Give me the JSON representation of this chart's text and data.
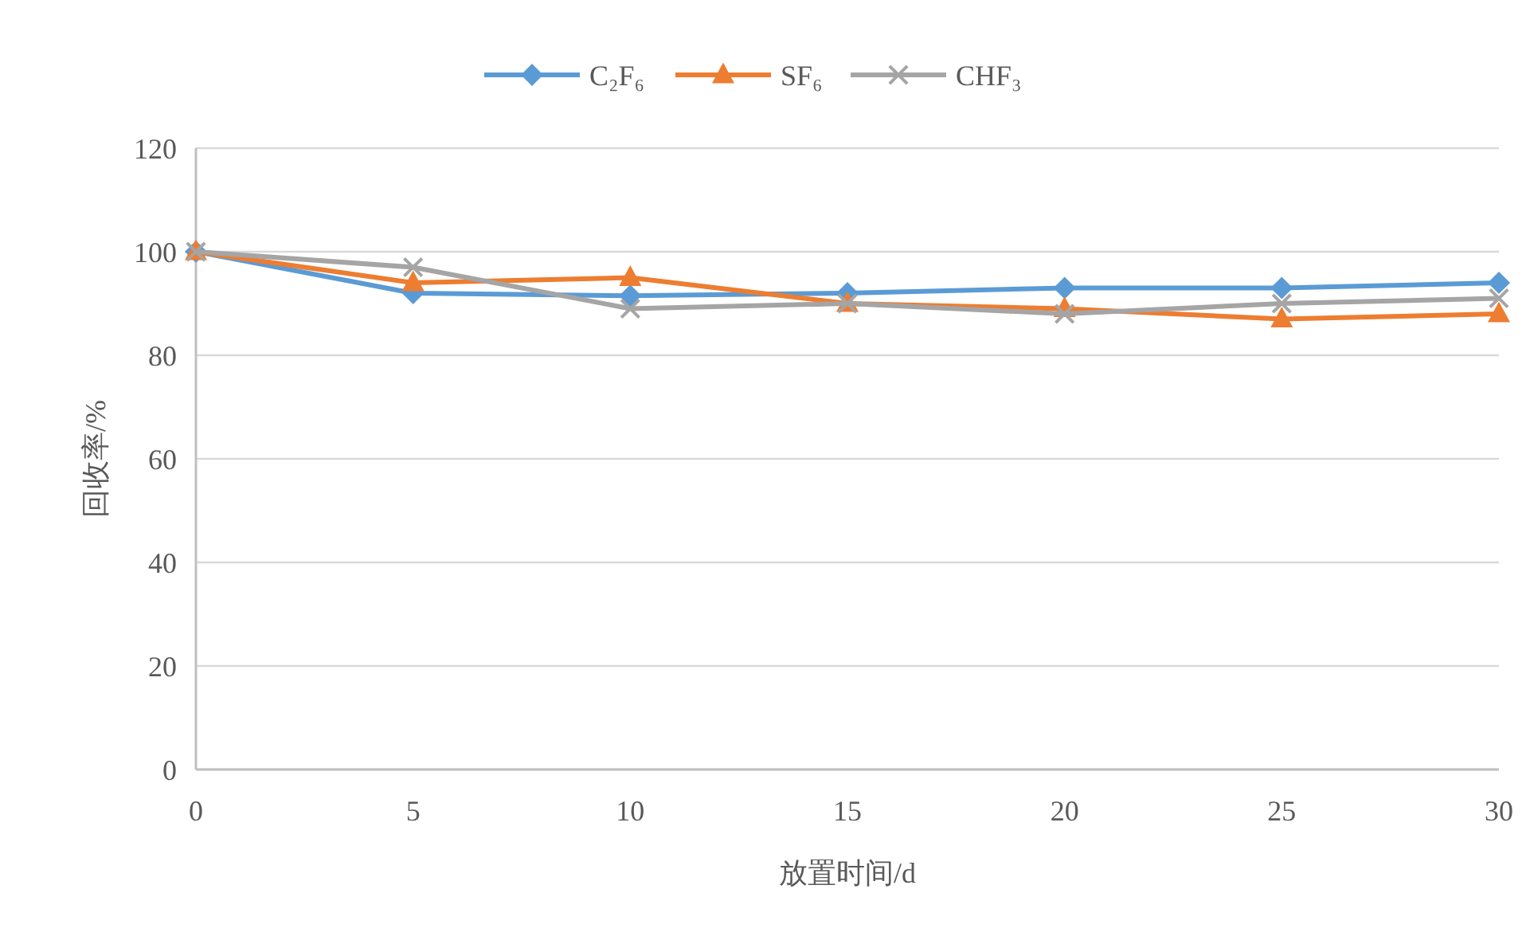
{
  "chart_data": {
    "type": "line",
    "xlabel": "放置时间/d",
    "ylabel": "回收率/%",
    "x": [
      0,
      5,
      10,
      15,
      20,
      25,
      30
    ],
    "series": [
      {
        "name": "C₂F₆",
        "color": "#5b9bd5",
        "marker": "diamond",
        "values": [
          100,
          92,
          91.5,
          92,
          93,
          93,
          94
        ]
      },
      {
        "name": "SF₆",
        "color": "#ed7d31",
        "marker": "triangle",
        "values": [
          100,
          94,
          95,
          90,
          89,
          87,
          88
        ]
      },
      {
        "name": "CHF₃",
        "color": "#a5a5a5",
        "marker": "cross",
        "values": [
          100,
          97,
          89,
          90,
          88,
          90,
          91
        ]
      }
    ],
    "xlim": [
      0,
      30
    ],
    "xticks": [
      0,
      5,
      10,
      15,
      20,
      25,
      30
    ],
    "ylim": [
      0,
      120
    ],
    "yticks": [
      0,
      20,
      40,
      60,
      80,
      100,
      120
    ],
    "grid": "y",
    "legend": "top",
    "line_style": "solid"
  }
}
